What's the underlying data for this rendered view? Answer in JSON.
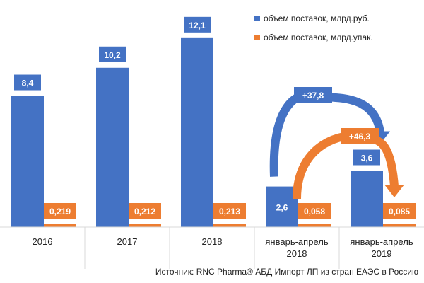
{
  "chart_data": {
    "type": "bar",
    "categories": [
      [
        "2016"
      ],
      [
        "2017"
      ],
      [
        "2018"
      ],
      [
        "январь-апрель",
        "2018"
      ],
      [
        "январь-апрель",
        "2019"
      ]
    ],
    "series": [
      {
        "name": "объем поставок, млрд.руб.",
        "color": "#4472C4",
        "values": [
          8.4,
          10.2,
          12.1,
          2.6,
          3.6
        ],
        "labels": [
          "8,4",
          "10,2",
          "12,1",
          "2,6",
          "3,6"
        ]
      },
      {
        "name": "объем поставок, млрд.упак.",
        "color": "#ED7D31",
        "values": [
          0.219,
          0.212,
          0.213,
          0.058,
          0.085
        ],
        "labels": [
          "0,219",
          "0,212",
          "0,213",
          "0,058",
          "0,085"
        ]
      }
    ],
    "ylim": [
      0,
      12.5
    ],
    "grid": false,
    "legend_position": "top-right",
    "annotations": [
      {
        "text": "+37,8",
        "color": "#4472C4",
        "from_category": 3,
        "to_category": 4,
        "series": 0
      },
      {
        "text": "+46,3",
        "color": "#ED7D31",
        "from_category": 3,
        "to_category": 4,
        "series": 1
      }
    ],
    "source": "Источник: RNC Pharma® АБД Импорт ЛП из стран ЕАЭС в Россию"
  }
}
